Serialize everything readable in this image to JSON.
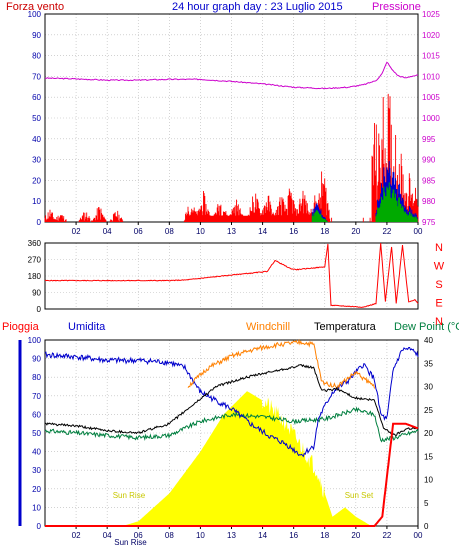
{
  "colors": {
    "red": "#ff0000",
    "blue": "#0000cc",
    "magenta": "#cc00cc",
    "green": "#007f3f",
    "orange": "#ff8000",
    "black": "#000000",
    "yellow": "#ffff00",
    "grid": "#b8b8b8",
    "frame": "#000000"
  },
  "header": {
    "left": "Forza vento",
    "center": "24 hour graph day : 23 Luglio 2015",
    "right": "Pressione"
  },
  "chart_data": [
    {
      "id": "wind",
      "type": "line",
      "series_names_printed": [
        "Forza vento",
        "Pressione"
      ],
      "x_ticks": [
        "02",
        "04",
        "06",
        "08",
        "10",
        "13",
        "14",
        "16",
        "18",
        "20",
        "22",
        "00"
      ],
      "y_left": {
        "ticks": [
          0,
          10,
          20,
          30,
          40,
          50,
          60,
          70,
          80,
          90,
          100
        ],
        "ylim": [
          0,
          100
        ]
      },
      "y_right": {
        "ticks": [
          975,
          980,
          985,
          990,
          995,
          1000,
          1005,
          1010,
          1015,
          1020,
          1025
        ],
        "ylim": [
          975,
          1025
        ]
      },
      "pressure": {
        "x": [
          0,
          2,
          4,
          6,
          8,
          10,
          12,
          14,
          16,
          18,
          19.5,
          20.5,
          21.3,
          21.7,
          22.0,
          22.3,
          22.7,
          23.2,
          23.5,
          24
        ],
        "y": [
          1009.6,
          1009.4,
          1009.1,
          1009.1,
          1009.3,
          1009.3,
          1008.8,
          1008.2,
          1007.4,
          1007.1,
          1007.4,
          1008.0,
          1009.0,
          1010.7,
          1013.5,
          1011.8,
          1010.2,
          1009.6,
          1010.0,
          1010.3
        ]
      },
      "wind_gust_peaks": {
        "x": [
          0.3,
          1.0,
          2.6,
          3.5,
          4.6,
          9.4,
          10.2,
          11.3,
          12.3,
          13.5,
          14.3,
          15.2,
          15.8,
          16.6,
          17.4,
          17.9,
          21.2,
          21.8,
          22.1,
          22.6,
          23.4,
          23.9
        ],
        "y": [
          7,
          5,
          6,
          9,
          6,
          8,
          12,
          10,
          9,
          14,
          13,
          12,
          16,
          17,
          11,
          28,
          48,
          60,
          62,
          44,
          20,
          17
        ]
      },
      "wind_avg_peaks": {
        "x": [
          17.5,
          21.8,
          22.1,
          22.4,
          22.8,
          23.5
        ],
        "y": [
          9,
          24,
          31,
          26,
          18,
          8
        ]
      }
    },
    {
      "id": "direction",
      "type": "line",
      "y_left": {
        "ticks": [
          0,
          90,
          180,
          270,
          360
        ],
        "ylim": [
          0,
          360
        ]
      },
      "y_right_labels": [
        "N",
        "W",
        "S",
        "E",
        "N"
      ],
      "x": [
        0,
        4,
        8,
        9.0,
        12.5,
        13.2,
        14.3,
        14.8,
        15.8,
        16.2,
        18.0,
        18.2,
        18.4,
        20.5,
        21.3,
        21.6,
        21.9,
        22.3,
        22.6,
        23.0,
        23.4,
        23.8,
        24
      ],
      "y": [
        155,
        155,
        155,
        158,
        190,
        195,
        205,
        265,
        220,
        215,
        230,
        355,
        20,
        10,
        30,
        360,
        40,
        340,
        30,
        350,
        40,
        50,
        30
      ]
    },
    {
      "id": "thermo",
      "type": "line",
      "series_names_printed": [
        "Pioggia",
        "Umidita",
        "Windchill",
        "Temperatura",
        "Dew Point (°C"
      ],
      "y_left": {
        "ticks": [
          0,
          10,
          20,
          30,
          40,
          50,
          60,
          70,
          80,
          90,
          100
        ],
        "ylim": [
          0,
          100
        ]
      },
      "y_right": {
        "ticks": [
          0,
          5,
          10,
          15,
          20,
          25,
          30,
          35,
          40
        ],
        "ylim": [
          0,
          40
        ]
      },
      "humidity": {
        "x": [
          0,
          2,
          4,
          6,
          8,
          9.0,
          10.0,
          12,
          13.2,
          14.5,
          15.5,
          16.5,
          17.3,
          17.6,
          18.5,
          19.5,
          20.5,
          21.2,
          21.6,
          22.0,
          22.4,
          23.0,
          23.5,
          24
        ],
        "y": [
          92,
          91,
          89,
          89,
          88,
          85,
          72,
          63,
          55,
          48,
          44,
          38,
          43,
          58,
          72,
          78,
          87,
          79,
          60,
          57,
          84,
          95,
          95,
          92
        ]
      },
      "temperature": {
        "x": [
          0,
          2,
          4,
          6,
          8,
          9.5,
          11,
          13,
          15,
          16.5,
          17.3,
          17.8,
          18.8,
          20,
          21.2,
          21.8,
          22.5,
          23.3,
          24
        ],
        "y": [
          22,
          21.5,
          20.5,
          20,
          22,
          26,
          30,
          32,
          33.5,
          34.5,
          34,
          29,
          29.5,
          27.5,
          27,
          21,
          19.5,
          21,
          21
        ]
      },
      "windchill": {
        "x": [
          9.2,
          10.5,
          12,
          13.5,
          15,
          16.5,
          17.3,
          17.8,
          18.8,
          20,
          21.2
        ],
        "y": [
          30,
          34,
          36.5,
          38,
          39,
          39.5,
          39,
          31,
          30,
          33,
          30
        ]
      },
      "dew_point": {
        "x": [
          0,
          2,
          4,
          6,
          8,
          10,
          12,
          14,
          16,
          18,
          20,
          21.2,
          21.6,
          22.5,
          24
        ],
        "y": [
          20.5,
          20,
          19.5,
          19,
          19.5,
          22.5,
          24,
          23.5,
          22.5,
          23,
          25,
          24,
          18.5,
          19,
          20.5
        ]
      },
      "solar": {
        "x": [
          5,
          6,
          8,
          10,
          11.5,
          13,
          14,
          15.5,
          16.5,
          17.5,
          18.5,
          19.3,
          20,
          21
        ],
        "y": [
          0,
          1,
          7,
          16,
          24,
          29,
          27,
          22,
          17,
          12,
          2,
          4,
          2,
          0
        ]
      },
      "rain": {
        "x": [
          0,
          21.2,
          21.7,
          22.4,
          23.2,
          24
        ],
        "y": [
          0,
          0,
          2,
          22,
          22,
          21
        ]
      },
      "annotations": [
        "Sun Rise",
        "Sun Set"
      ],
      "x_ticks_extra": [
        "Sun Rise",
        "Sun Set"
      ]
    }
  ]
}
